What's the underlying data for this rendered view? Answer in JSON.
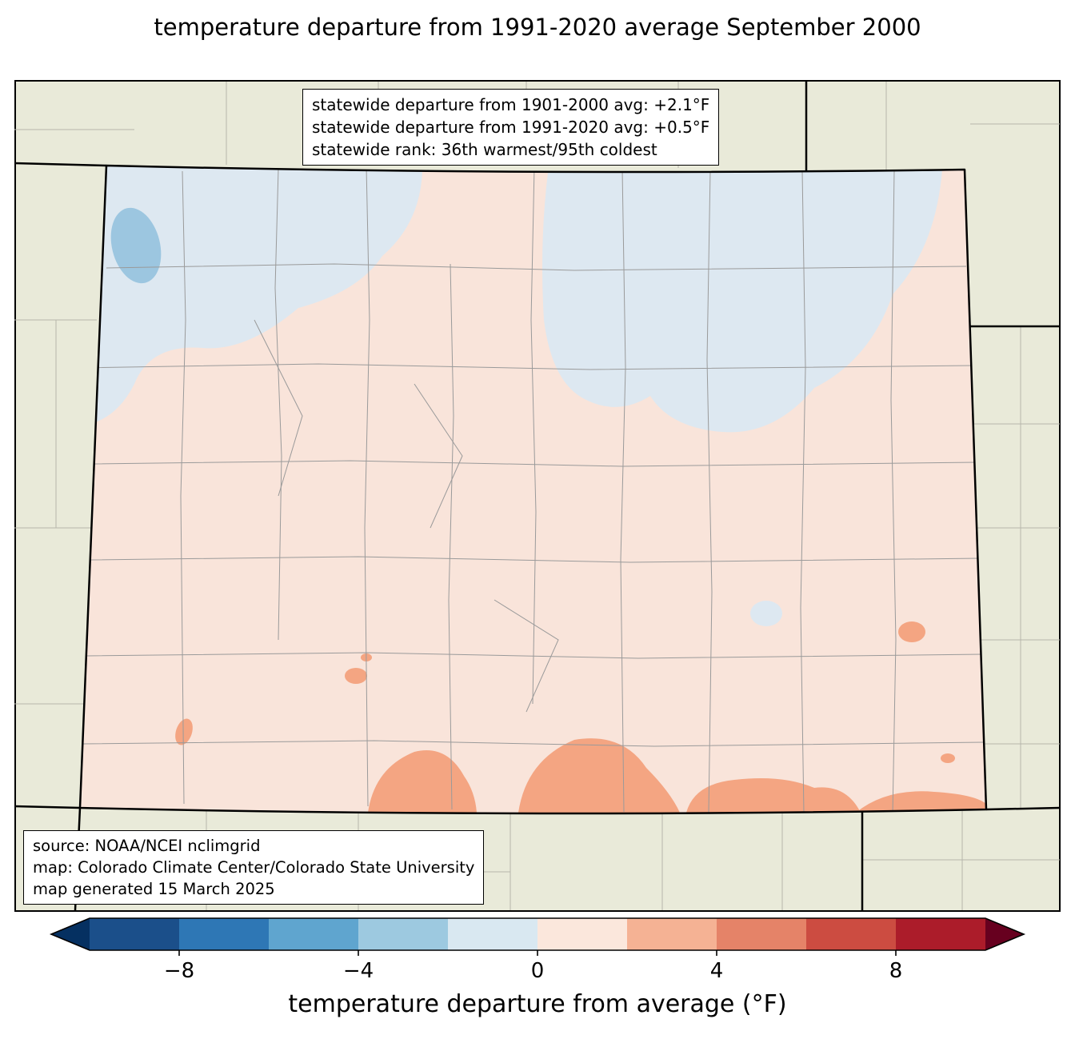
{
  "title": {
    "line1": "temperature departure from 1991-2020 average",
    "line2": "September 2000"
  },
  "map": {
    "region": "Colorado",
    "stats_box": {
      "line1": "statewide departure from 1901-2000 avg: +2.1°F",
      "line2": "statewide departure from 1991-2020 avg: +0.5°F",
      "line3": "statewide rank: 36th warmest/95th coldest"
    },
    "source_box": {
      "line1": "source: NOAA/NCEI nclimgrid",
      "line2": "map: Colorado Climate Center/Colorado State University",
      "line3": "map generated 15 March 2025"
    },
    "colors": {
      "outside_fill": "#e9ead9",
      "state_base_fill": "#f9e4da",
      "cool_region": "#dde8f1",
      "cool_strong": "#9cc6e0",
      "warm_region": "#f4a582",
      "county_line": "#9a9a9a",
      "neighbor_county_line": "#b6b6ac",
      "state_border": "#000000"
    }
  },
  "colorbar": {
    "label": "temperature departure from average (°F)",
    "ticks": [
      "−8",
      "−4",
      "0",
      "4",
      "8"
    ],
    "tick_values": [
      -8,
      -4,
      0,
      4,
      8
    ],
    "range_min": -10,
    "range_max": 10,
    "segment_step_f": 2,
    "segment_colors": [
      "#1b4f8a",
      "#2e77b5",
      "#5fa5cf",
      "#9dc9e0",
      "#d9e8f1",
      "#fbe7dc",
      "#f5b294",
      "#e58368",
      "#cc4c41",
      "#ac1c2a"
    ],
    "under_arrow_color": "#053061",
    "over_arrow_color": "#67001f"
  }
}
